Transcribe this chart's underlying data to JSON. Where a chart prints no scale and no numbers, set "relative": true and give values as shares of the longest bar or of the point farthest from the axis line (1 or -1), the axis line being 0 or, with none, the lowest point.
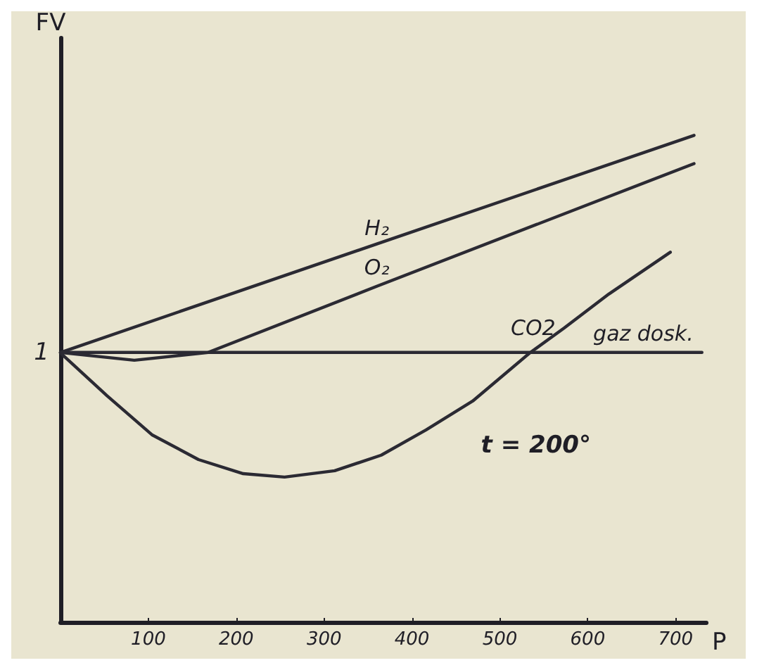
{
  "chart_data": {
    "type": "line",
    "relative": true,
    "xlabel": "P",
    "ylabel": "FV",
    "xlim": [
      0,
      735
    ],
    "xticks": [
      100,
      200,
      300,
      400,
      500,
      600,
      700
    ],
    "grid": false,
    "legend": false,
    "marker": "none",
    "line_style": "solid",
    "annotations": [
      {
        "text": "1",
        "x": 0,
        "y": 0.554
      },
      "t = 200°"
    ],
    "series": [
      {
        "name": "H₂",
        "color": "#2b2a33",
        "x": [
          0,
          360,
          721
        ],
        "values": [
          0.554,
          0.777,
          1.0
        ]
      },
      {
        "name": "O₂",
        "color": "#2b2a33",
        "x": [
          0,
          84,
          168,
          360,
          721
        ],
        "values": [
          0.554,
          0.538,
          0.554,
          0.69,
          0.942
        ]
      },
      {
        "name": "CO2",
        "color": "#2b2a33",
        "x": [
          0,
          53,
          104,
          157,
          208,
          255,
          312,
          365,
          416,
          469,
          534,
          573,
          624,
          694
        ],
        "values": [
          0.553,
          0.465,
          0.385,
          0.334,
          0.305,
          0.298,
          0.311,
          0.343,
          0.395,
          0.454,
          0.553,
          0.604,
          0.674,
          0.76
        ]
      },
      {
        "name": "gaz dosk.",
        "color": "#2b2a33",
        "x": [
          0,
          730
        ],
        "values": [
          0.554,
          0.554
        ]
      }
    ]
  }
}
